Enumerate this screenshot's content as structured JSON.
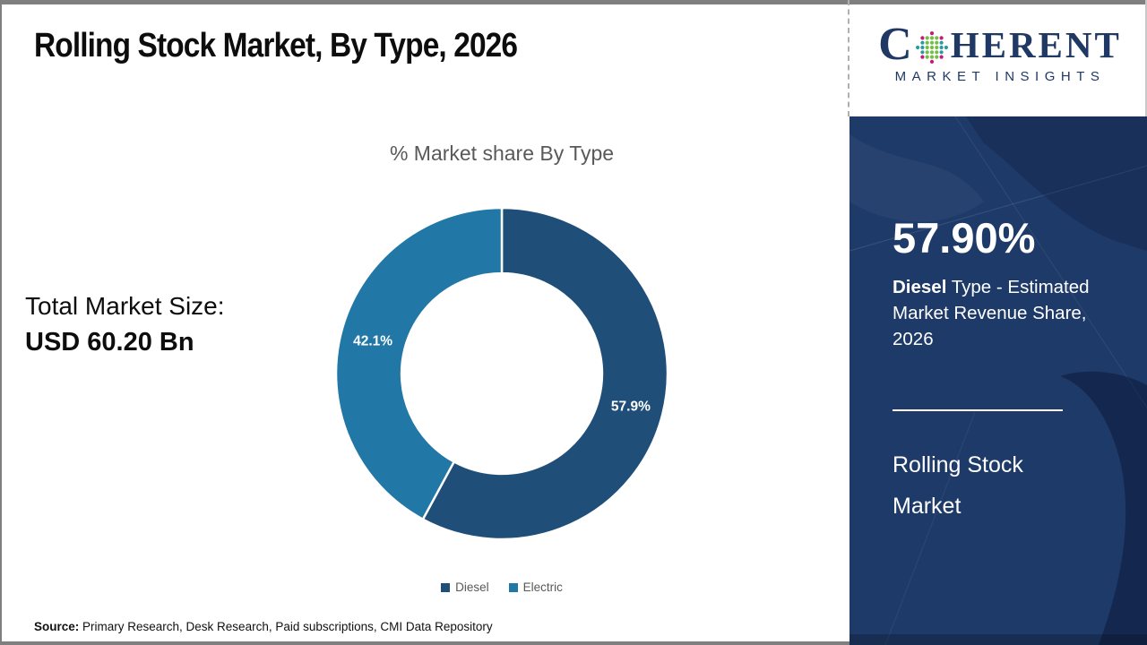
{
  "header": {
    "title": "Rolling Stock Market, By Type, 2026"
  },
  "logo": {
    "name_c": "C",
    "name_rest": "HERENT",
    "tagline": "MARKET INSIGHTS",
    "navy": "#1f3864",
    "dot_colors": {
      "teal": "#2b9aa0",
      "green": "#72bf44",
      "magenta": "#c5197d"
    }
  },
  "left_stats": {
    "label": "Total Market Size:",
    "value": "USD 60.20 Bn"
  },
  "chart_data": {
    "type": "pie",
    "subtype": "donut",
    "title": "% Market share By Type",
    "categories": [
      "Diesel",
      "Electric"
    ],
    "values": [
      57.9,
      42.1
    ],
    "slice_labels": [
      "57.9%",
      "42.1%"
    ],
    "colors": [
      "#1f4e79",
      "#2177a5"
    ],
    "start_angle_deg": 0,
    "direction": "clockwise",
    "inner_radius_ratio": 0.605,
    "legend_position": "bottom",
    "label_color": "#ffffff"
  },
  "side_panel": {
    "bg_color": "#1e3a68",
    "stat_value": "57.90%",
    "desc_bold": "Diesel",
    "desc_rest": " Type - Estimated Market Revenue Share, 2026",
    "title_line1": "Rolling Stock",
    "title_line2": "Market"
  },
  "footer": {
    "source_label": "Source:",
    "source_text": " Primary Research, Desk Research, Paid subscriptions, CMI Data Repository"
  }
}
